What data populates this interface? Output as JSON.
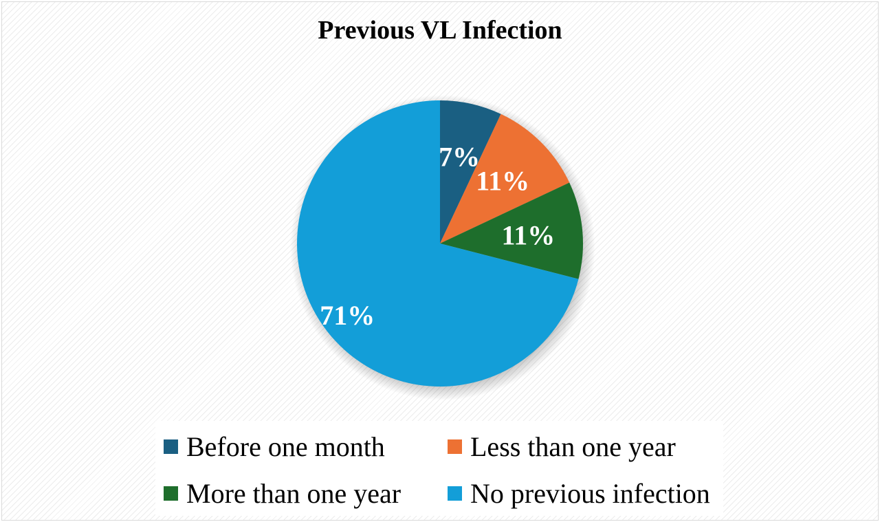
{
  "chart_data": {
    "type": "pie",
    "title": "Previous VL Infection",
    "slices": [
      {
        "label": "Before one month",
        "value": 7,
        "display": "7%",
        "color": "#1a5f82"
      },
      {
        "label": "Less than one year",
        "value": 11,
        "display": "11%",
        "color": "#ed7133"
      },
      {
        "label": "More than one year",
        "value": 11,
        "display": "11%",
        "color": "#1e6e2c"
      },
      {
        "label": "No previous infection",
        "value": 71,
        "display": "71%",
        "color": "#139ed8"
      }
    ],
    "legend_position": "bottom",
    "data_label_color": "#ffffff"
  }
}
